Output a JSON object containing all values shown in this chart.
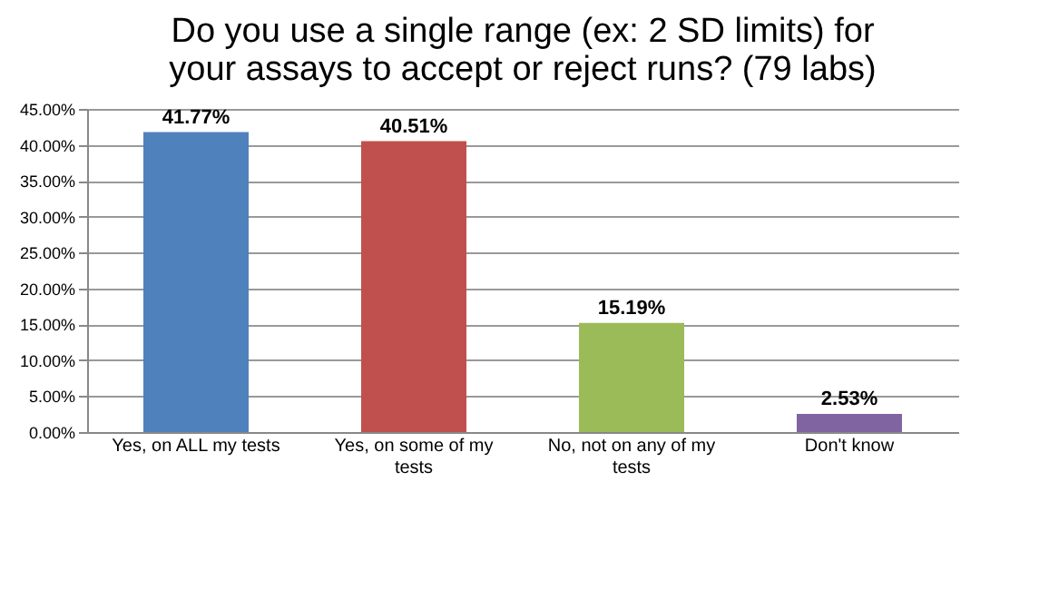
{
  "chart_data": {
    "type": "bar",
    "title": "Do you use a single range (ex: 2 SD limits) for your assays to accept or reject runs? (79 labs)",
    "categories": [
      "Yes, on ALL my tests",
      "Yes, on some of my tests",
      "No, not on any of my tests",
      "Don't know"
    ],
    "values": [
      41.77,
      40.51,
      15.19,
      2.53
    ],
    "colors": [
      "#4f81bd",
      "#c0504d",
      "#9bbb59",
      "#8064a2"
    ],
    "value_labels": [
      "41.77%",
      "40.51%",
      "15.19%",
      "2.53%"
    ],
    "ylim": [
      0,
      45
    ],
    "yticks": [
      {
        "value": 0,
        "label": "0.00%"
      },
      {
        "value": 5,
        "label": "5.00%"
      },
      {
        "value": 10,
        "label": "10.00%"
      },
      {
        "value": 15,
        "label": "15.00%"
      },
      {
        "value": 20,
        "label": "20.00%"
      },
      {
        "value": 25,
        "label": "25.00%"
      },
      {
        "value": 30,
        "label": "30.00%"
      },
      {
        "value": 35,
        "label": "35.00%"
      },
      {
        "value": 40,
        "label": "40.00%"
      },
      {
        "value": 45,
        "label": "45.00%"
      }
    ],
    "grid": "y"
  }
}
